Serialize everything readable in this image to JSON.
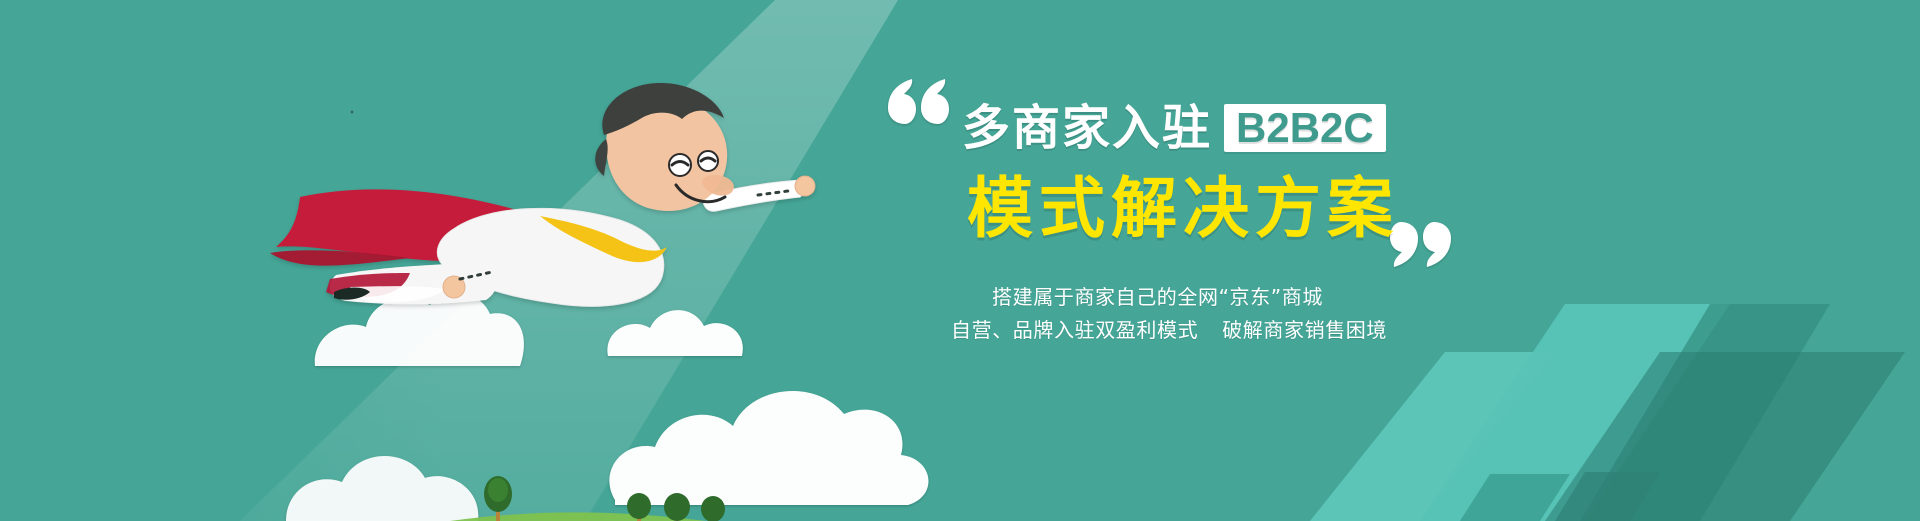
{
  "banner": {
    "headline_line1": "多商家入驻",
    "badge": "B2B2C",
    "headline_line2": "模式解决方案",
    "subline_1": "搭建属于商家自己的全网“京东”商城",
    "subline_2_left": "自营、品牌入驻双盈利模式",
    "subline_2_right": "破解商家销售困境",
    "colors": {
      "background": "#45a697",
      "accent_yellow": "#ffe600",
      "badge_text": "#3e9b8d",
      "cape": "#c51e3a",
      "tie": "#f5c318"
    },
    "decorative_icons": [
      "quote-open-icon",
      "quote-close-icon",
      "spotlight-beam",
      "flying-superhero-illustration",
      "cloud-icon",
      "tree-icon",
      "diagonal-stripe-shapes"
    ]
  }
}
